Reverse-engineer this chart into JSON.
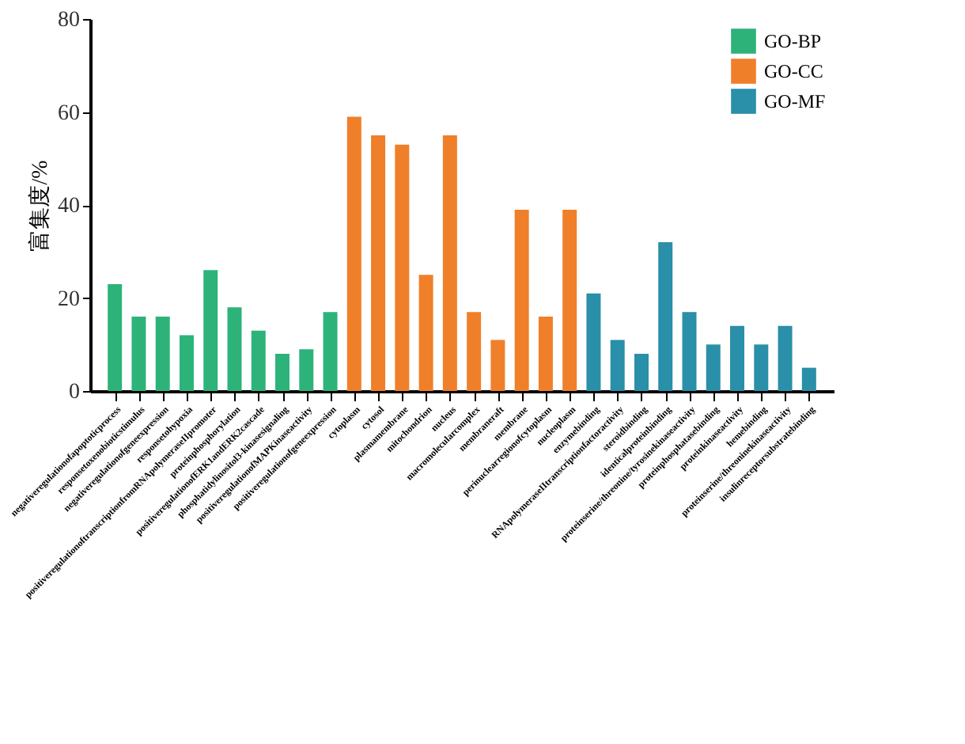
{
  "chart_data": {
    "type": "bar",
    "ylabel": "富集度/%",
    "categories": [
      "negativeregulationofapoptoticprocess",
      "responsetoxenobioticstimulus",
      "negativeregulationofgeneexpression",
      "responsetohypoxia",
      "positiveregulationoftranscriptionfromRNApolymeraseIIpromoter",
      "proteinphosphorylation",
      "positiveregulationofERK1andERK2cascade",
      "phosphatidylinositol3-kinasesignaling",
      "positiveregulationofMAPKinaseactivity",
      "positiveregulationofgeneexpression",
      "cytoplasm",
      "cytosol",
      "plasmamembrane",
      "mitochondrion",
      "nucleus",
      "macromolecularcomplex",
      "membraneraft",
      "membrane",
      "perinuclearregionofcytoplasm",
      "nucleoplasm",
      "enzymebinding",
      "RNApolymeraseIItranscriptionfactoractivity",
      "steroidbinding",
      "identicalproteinbinding",
      "proteinserine/threonine/tyrosinekinaseactivity",
      "proteinphosphatasebinding",
      "proteinkinaseactivity",
      "hemebinding",
      "proteinserine/threoninekinaseactivity",
      "insulinreceptorsubstratebinding"
    ],
    "series": [
      {
        "name": "GO-BP",
        "color": "#2db37a",
        "values": [
          23,
          16,
          16,
          12,
          26,
          18,
          13,
          8,
          9,
          17,
          null,
          null,
          null,
          null,
          null,
          null,
          null,
          null,
          null,
          null,
          null,
          null,
          null,
          null,
          null,
          null,
          null,
          null,
          null,
          null
        ]
      },
      {
        "name": "GO-CC",
        "color": "#f07f2a",
        "values": [
          null,
          null,
          null,
          null,
          null,
          null,
          null,
          null,
          null,
          null,
          59,
          55,
          53,
          25,
          55,
          17,
          11,
          39,
          16,
          39,
          null,
          null,
          null,
          null,
          null,
          null,
          null,
          null,
          null,
          null
        ]
      },
      {
        "name": "GO-MF",
        "color": "#2a8fa8",
        "values": [
          null,
          null,
          null,
          null,
          null,
          null,
          null,
          null,
          null,
          null,
          null,
          null,
          null,
          null,
          null,
          null,
          null,
          null,
          null,
          null,
          21,
          11,
          8,
          32,
          17,
          10,
          14,
          10,
          14,
          5
        ]
      }
    ],
    "ylim": [
      0,
      80
    ],
    "yticks": [
      0,
      20,
      40,
      60,
      80
    ],
    "grid": false,
    "legend": "top right"
  }
}
